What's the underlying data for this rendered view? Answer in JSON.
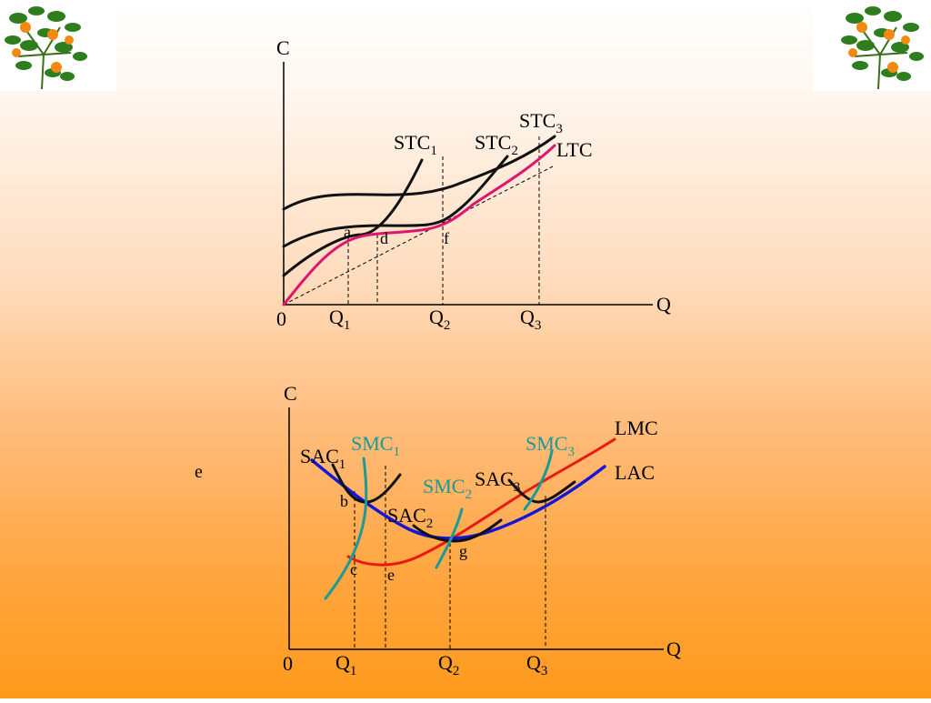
{
  "colors": {
    "black_curve": "#111111",
    "magenta_curve": "#e0166e",
    "blue_curve": "#1515d8",
    "red_curve": "#e81a0f",
    "teal_curve": "#1a9a98"
  },
  "decorations": {
    "top_left": "orange-tree-icon",
    "top_right": "orange-tree-icon"
  },
  "top_diagram": {
    "y_axis_label": "C",
    "x_axis_label": "Q",
    "origin_label": "0",
    "ticks": [
      {
        "base": "Q",
        "sub": "1"
      },
      {
        "base": "Q",
        "sub": "2"
      },
      {
        "base": "Q",
        "sub": "3"
      }
    ],
    "curve_labels": {
      "stc1": {
        "base": "STC",
        "sub": "1"
      },
      "stc2": {
        "base": "STC",
        "sub": "2"
      },
      "stc3": {
        "base": "STC",
        "sub": "3"
      },
      "ltc": "LTC"
    },
    "points": {
      "a": "a",
      "d": "d",
      "f": "f"
    }
  },
  "bottom_diagram": {
    "y_axis_label": "C",
    "x_axis_label": "Q",
    "origin_label": "0",
    "ticks": [
      {
        "base": "Q",
        "sub": "1"
      },
      {
        "base": "Q",
        "sub": "2"
      },
      {
        "base": "Q",
        "sub": "3"
      }
    ],
    "curve_labels": {
      "sac1": {
        "base": "SAC",
        "sub": "1"
      },
      "sac2": {
        "base": "SAC",
        "sub": "2"
      },
      "sac3": {
        "base": "SAC",
        "sub": "3"
      },
      "smc1": {
        "base": "SMC",
        "sub": "1"
      },
      "smc2": {
        "base": "SMC",
        "sub": "2"
      },
      "smc3": {
        "base": "SMC",
        "sub": "3"
      },
      "lmc": "LMC",
      "lac": "LAC"
    },
    "points": {
      "b": "b",
      "c": "c",
      "e": "e",
      "g": "g"
    }
  },
  "side_note": "e"
}
